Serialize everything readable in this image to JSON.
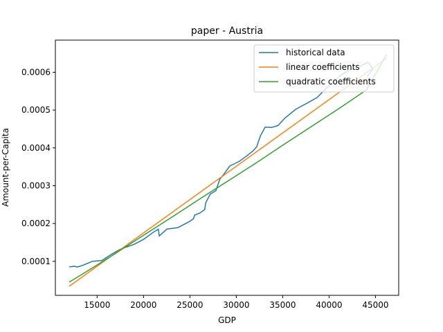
{
  "chart_data": {
    "type": "line",
    "title": "paper - Austria",
    "xlabel": "GDP",
    "ylabel": "Amount-per-Capita",
    "xlim": [
      10500,
      47500
    ],
    "ylim": [
      1e-05,
      0.000685
    ],
    "xticks": [
      15000,
      20000,
      25000,
      30000,
      35000,
      40000,
      45000
    ],
    "xtick_labels": [
      "15000",
      "20000",
      "25000",
      "30000",
      "35000",
      "40000",
      "45000"
    ],
    "yticks": [
      0.0001,
      0.0002,
      0.0003,
      0.0004,
      0.0005,
      0.0006
    ],
    "ytick_labels": [
      "0.0001",
      "0.0002",
      "0.0003",
      "0.0004",
      "0.0005",
      "0.0006"
    ],
    "legend_position": "top-right",
    "grid": false,
    "series": [
      {
        "name": "historical data",
        "color": "#1f77b4",
        "x": [
          12000,
          12500,
          12900,
          13500,
          14500,
          15500,
          16500,
          17500,
          19000,
          20000,
          21000,
          21600,
          21700,
          22500,
          23700,
          25000,
          25400,
          25500,
          26100,
          26600,
          26700,
          27200,
          27800,
          28200,
          28800,
          29300,
          30300,
          31200,
          31800,
          32200,
          32400,
          32600,
          33100,
          33800,
          34500,
          35200,
          36400,
          37600,
          38700,
          39300,
          40100,
          40700,
          41300,
          42300,
          43300,
          44100,
          44400,
          44700,
          44100
        ],
        "y": [
          8.5e-05,
          8.7e-05,
          8.5e-05,
          9e-05,
          0.0001,
          0.000102,
          0.000118,
          0.000132,
          0.000145,
          0.000158,
          0.000176,
          0.000185,
          0.000167,
          0.000185,
          0.000189,
          0.000206,
          0.000213,
          0.000222,
          0.000228,
          0.000237,
          0.000255,
          0.000278,
          0.000287,
          0.000316,
          0.000335,
          0.000352,
          0.000364,
          0.00038,
          0.000392,
          0.000403,
          0.000418,
          0.000432,
          0.000455,
          0.000454,
          0.000459,
          0.000478,
          0.000502,
          0.000518,
          0.000533,
          0.000548,
          0.000567,
          0.00058,
          0.000593,
          0.000607,
          0.000615,
          0.000626,
          0.000621,
          0.000608,
          0.000588
        ]
      },
      {
        "name": "linear coefficients",
        "color": "#ff7f0e",
        "x": [
          12000,
          46200
        ],
        "y": [
          3.4e-05,
          0.000637
        ]
      },
      {
        "name": "quadratic coefficients",
        "color": "#2ca02c",
        "x": [
          12000,
          14000,
          17000,
          20000,
          23000,
          26000,
          29000,
          32000,
          35000,
          38000,
          41000,
          44000,
          46200
        ],
        "y": [
          4.5e-05,
          7.5e-05,
          0.000121,
          0.000169,
          0.000216,
          0.000264,
          0.000311,
          0.000358,
          0.000407,
          0.000455,
          0.000503,
          0.000553,
          0.000647
        ]
      }
    ]
  }
}
